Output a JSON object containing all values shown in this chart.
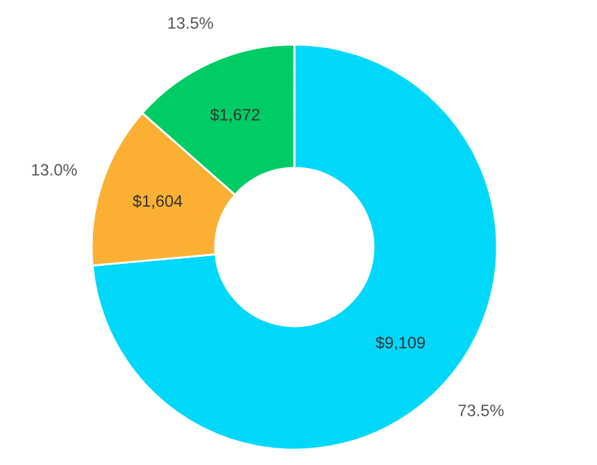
{
  "chart_data": {
    "type": "donut",
    "categories": [
      null,
      null,
      null
    ],
    "values": [
      9109,
      1604,
      1672
    ],
    "colors": [
      "#00d8fa",
      "#fbb034",
      "#00cc66"
    ],
    "value_labels": [
      "$9,109",
      "$1,604",
      "$1,672"
    ],
    "annotations": [
      "73.5%",
      "13.0%",
      "13.5%"
    ],
    "legend": false
  }
}
